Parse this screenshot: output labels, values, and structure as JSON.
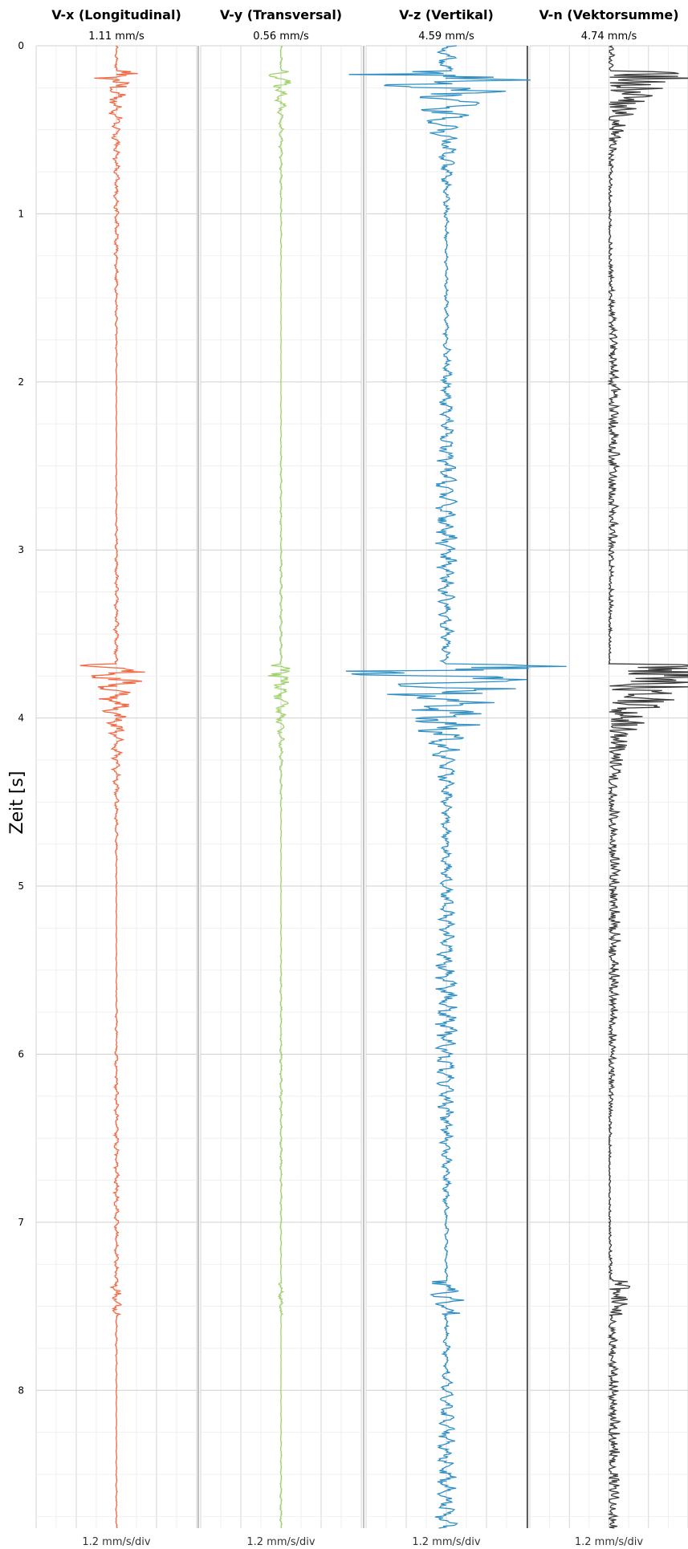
{
  "chart_data": {
    "type": "line",
    "ylabel": "Zeit [s]",
    "y_ticks": [
      "0",
      "1",
      "2",
      "3",
      "4",
      "5",
      "6",
      "7",
      "8"
    ],
    "ylim": [
      0,
      8.82
    ],
    "y_inverted": true,
    "grid": true,
    "events": [
      {
        "t": 0.15,
        "duration": 0.45
      },
      {
        "t": 3.68,
        "duration": 0.65
      }
    ],
    "panels": [
      {
        "title": "V-x (Longitudinal)",
        "peak": "1.11 mm/s",
        "scale": "1.2 mm/s/div",
        "color": "#f26a45",
        "peak_value": 1.11,
        "rectified": false
      },
      {
        "title": "V-y (Transversal)",
        "peak": "0.56 mm/s",
        "scale": "1.2 mm/s/div",
        "color": "#9fd36a",
        "peak_value": 0.56,
        "rectified": false
      },
      {
        "title": "V-z (Vertikal)",
        "peak": "4.59 mm/s",
        "scale": "1.2 mm/s/div",
        "color": "#2f8fc4",
        "peak_value": 4.59,
        "rectified": false
      },
      {
        "title": "V-n (Vektorsumme)",
        "peak": "4.74 mm/s",
        "scale": "1.2 mm/s/div",
        "color": "#3a3a3a",
        "peak_value": 4.74,
        "rectified": true
      }
    ]
  }
}
